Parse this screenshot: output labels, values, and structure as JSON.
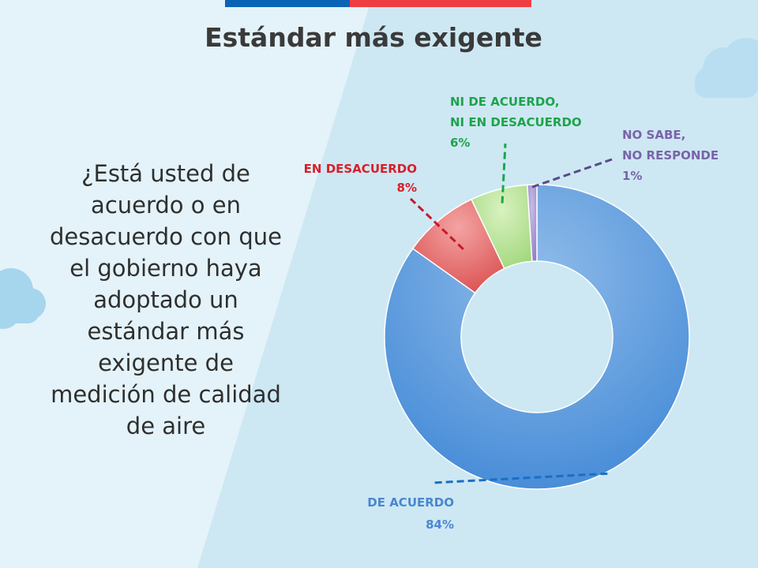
{
  "slide": {
    "title": "Estándar más exigente",
    "question": "¿Está usted de acuerdo o en desacuerdo con que el gobierno haya adoptado un estándar más exigente de medición de calidad de aire",
    "flag_colors": [
      "#0a63b4",
      "#ef3e42"
    ],
    "background_colors": [
      "#e2f2f9",
      "#c8e6f3"
    ]
  },
  "chart_data": {
    "type": "pie",
    "donut": true,
    "title": "",
    "series": [
      {
        "name": "DE ACUERDO",
        "value": 84,
        "value_label": "84%",
        "color": "#5a9be0",
        "label_color": "#4a86cf",
        "line_color": "#1a6fc4"
      },
      {
        "name": "EN DESACUERDO",
        "value": 8,
        "value_label": "8%",
        "color": "#e77b7b",
        "label_color": "#d6202a",
        "line_color": "#c8182a"
      },
      {
        "name": "NI DE ACUERDO, NI EN DESACUERDO",
        "name_lines": [
          "NI DE ACUERDO,",
          "NI EN DESACUERDO"
        ],
        "value": 6,
        "value_label": "6%",
        "color": "#b9e29a",
        "label_color": "#1ea34a",
        "line_color": "#18a84a"
      },
      {
        "name": "NO SABE, NO RESPONDE",
        "name_lines": [
          "NO SABE,",
          "NO RESPONDE"
        ],
        "value": 1,
        "value_label": "1%",
        "color": "#a99ad3",
        "label_color": "#7a63a8",
        "line_color": "#5a4a8a"
      }
    ]
  }
}
